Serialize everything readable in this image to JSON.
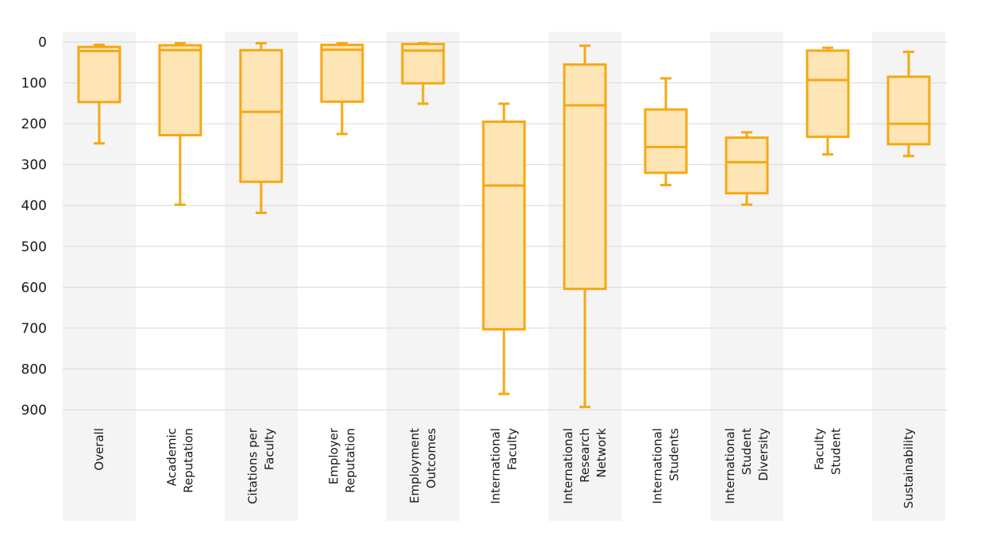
{
  "colors": {
    "box_fill": "#fde5b5",
    "box_stroke": "#f5a814",
    "band": "#f4f4f4",
    "grid": "#d9d9d9"
  },
  "chart_data": {
    "type": "box",
    "title": "",
    "xlabel": "",
    "ylabel": "",
    "y_axis": {
      "min": 0,
      "max": 900,
      "reversed": true,
      "ticks": [
        0,
        100,
        200,
        300,
        400,
        500,
        600,
        700,
        800,
        900
      ]
    },
    "grid": "horizontal",
    "alternating_bands": true,
    "categories": [
      {
        "name": [
          "Overall"
        ],
        "whisker_low": 7,
        "q1": 12,
        "median": 22,
        "q3": 147,
        "whisker_high": 248
      },
      {
        "name": [
          "Academic",
          "Reputation"
        ],
        "whisker_low": 3,
        "q1": 8,
        "median": 20,
        "q3": 228,
        "whisker_high": 398
      },
      {
        "name": [
          "Citations per",
          "Faculty"
        ],
        "whisker_low": 3,
        "q1": 20,
        "median": 171,
        "q3": 342,
        "whisker_high": 418
      },
      {
        "name": [
          "Employer",
          "Reputation"
        ],
        "whisker_low": 3,
        "q1": 7,
        "median": 19,
        "q3": 146,
        "whisker_high": 225
      },
      {
        "name": [
          "Employment",
          "Outcomes"
        ],
        "whisker_low": 3,
        "q1": 5,
        "median": 21,
        "q3": 101,
        "whisker_high": 151
      },
      {
        "name": [
          "International",
          "Faculty"
        ],
        "whisker_low": 151,
        "q1": 195,
        "median": 351,
        "q3": 703,
        "whisker_high": 861
      },
      {
        "name": [
          "International",
          "Research",
          "Network"
        ],
        "whisker_low": 9,
        "q1": 55,
        "median": 155,
        "q3": 604,
        "whisker_high": 893
      },
      {
        "name": [
          "International",
          "Students"
        ],
        "whisker_low": 89,
        "q1": 165,
        "median": 257,
        "q3": 320,
        "whisker_high": 350
      },
      {
        "name": [
          "International",
          "Student",
          "Diversity"
        ],
        "whisker_low": 221,
        "q1": 234,
        "median": 294,
        "q3": 370,
        "whisker_high": 398
      },
      {
        "name": [
          "Faculty",
          "Student"
        ],
        "whisker_low": 14,
        "q1": 21,
        "median": 93,
        "q3": 232,
        "whisker_high": 275
      },
      {
        "name": [
          "Sustainability"
        ],
        "whisker_low": 24,
        "q1": 85,
        "median": 200,
        "q3": 250,
        "whisker_high": 279
      }
    ]
  }
}
